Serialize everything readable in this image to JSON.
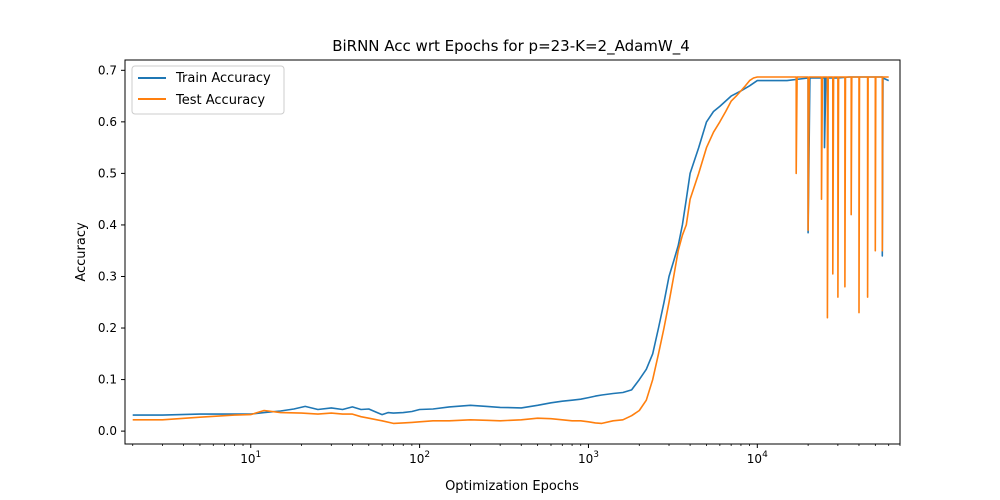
{
  "chart_data": {
    "type": "line",
    "title": "BiRNN Acc wrt Epochs for p=23-K=2_AdamW_4",
    "xlabel": "Optimization Epochs",
    "ylabel": "Accuracy",
    "xscale": "log",
    "xlim": [
      1.8,
      70000
    ],
    "ylim": [
      -0.025,
      0.72
    ],
    "yticks": [
      0.0,
      0.1,
      0.2,
      0.3,
      0.4,
      0.5,
      0.6,
      0.7
    ],
    "ytick_labels": [
      "0.0",
      "0.1",
      "0.2",
      "0.3",
      "0.4",
      "0.5",
      "0.6",
      "0.7"
    ],
    "xticks": [
      10,
      100,
      1000,
      10000
    ],
    "xtick_bases": [
      "10",
      "10",
      "10",
      "10"
    ],
    "xtick_exponents": [
      "1",
      "2",
      "3",
      "4"
    ],
    "grid": false,
    "legend_position": "top-left",
    "series": [
      {
        "name": "Train Accuracy",
        "color": "#1f77b4",
        "x": [
          2,
          3,
          5,
          8,
          10,
          12,
          15,
          18,
          21,
          25,
          30,
          35,
          40,
          45,
          50,
          55,
          60,
          65,
          70,
          80,
          90,
          100,
          120,
          150,
          200,
          250,
          300,
          400,
          500,
          600,
          700,
          800,
          900,
          1000,
          1100,
          1200,
          1400,
          1600,
          1800,
          2000,
          2200,
          2400,
          2600,
          2800,
          3000,
          3200,
          3400,
          3600,
          3800,
          4000,
          4500,
          5000,
          5500,
          6000,
          7000,
          8000,
          9000,
          10000,
          12000,
          15000,
          20000,
          20000,
          20500,
          25000,
          25000,
          25500,
          30000,
          35000,
          40000,
          45000,
          50000,
          55000,
          55000,
          55500,
          60000
        ],
        "y": [
          0.031,
          0.031,
          0.033,
          0.033,
          0.033,
          0.036,
          0.039,
          0.043,
          0.048,
          0.042,
          0.045,
          0.042,
          0.047,
          0.042,
          0.043,
          0.037,
          0.032,
          0.036,
          0.035,
          0.036,
          0.038,
          0.042,
          0.043,
          0.047,
          0.05,
          0.048,
          0.046,
          0.045,
          0.05,
          0.055,
          0.058,
          0.06,
          0.062,
          0.065,
          0.068,
          0.07,
          0.073,
          0.075,
          0.08,
          0.1,
          0.12,
          0.15,
          0.2,
          0.25,
          0.3,
          0.33,
          0.36,
          0.4,
          0.45,
          0.5,
          0.55,
          0.6,
          0.62,
          0.63,
          0.65,
          0.66,
          0.67,
          0.68,
          0.68,
          0.68,
          0.685,
          0.385,
          0.685,
          0.685,
          0.55,
          0.685,
          0.685,
          0.687,
          0.687,
          0.687,
          0.687,
          0.687,
          0.34,
          0.685,
          0.68
        ]
      },
      {
        "name": "Test Accuracy",
        "color": "#ff7f0e",
        "x": [
          2,
          3,
          5,
          8,
          10,
          12,
          15,
          20,
          25,
          30,
          35,
          40,
          45,
          50,
          60,
          70,
          80,
          90,
          100,
          120,
          150,
          200,
          250,
          300,
          400,
          500,
          600,
          700,
          800,
          900,
          1000,
          1100,
          1200,
          1400,
          1600,
          1800,
          2000,
          2200,
          2400,
          2600,
          2800,
          3000,
          3200,
          3400,
          3600,
          3800,
          4000,
          4500,
          5000,
          5500,
          6000,
          6500,
          7000,
          7500,
          8000,
          8500,
          9000,
          9500,
          10000,
          12000,
          15000,
          17000,
          17000,
          17200,
          20000,
          20000,
          20300,
          24000,
          24000,
          24300,
          26000,
          26000,
          26300,
          28000,
          28000,
          28300,
          30000,
          30000,
          30300,
          33000,
          33000,
          33300,
          36000,
          36000,
          36300,
          40000,
          40000,
          40300,
          45000,
          45000,
          45300,
          50000,
          50000,
          50300,
          55000,
          55000,
          55300,
          60000
        ],
        "y": [
          0.022,
          0.022,
          0.027,
          0.031,
          0.032,
          0.04,
          0.036,
          0.035,
          0.033,
          0.035,
          0.033,
          0.033,
          0.028,
          0.025,
          0.02,
          0.015,
          0.016,
          0.017,
          0.018,
          0.02,
          0.02,
          0.022,
          0.021,
          0.02,
          0.022,
          0.025,
          0.024,
          0.022,
          0.02,
          0.02,
          0.018,
          0.016,
          0.015,
          0.02,
          0.022,
          0.03,
          0.04,
          0.06,
          0.1,
          0.15,
          0.2,
          0.25,
          0.3,
          0.35,
          0.38,
          0.4,
          0.45,
          0.5,
          0.55,
          0.58,
          0.6,
          0.62,
          0.64,
          0.65,
          0.66,
          0.67,
          0.68,
          0.685,
          0.687,
          0.687,
          0.687,
          0.687,
          0.5,
          0.687,
          0.687,
          0.39,
          0.687,
          0.687,
          0.45,
          0.687,
          0.687,
          0.22,
          0.687,
          0.687,
          0.305,
          0.687,
          0.687,
          0.26,
          0.687,
          0.687,
          0.28,
          0.687,
          0.687,
          0.42,
          0.687,
          0.687,
          0.23,
          0.687,
          0.687,
          0.26,
          0.687,
          0.687,
          0.35,
          0.687,
          0.687,
          0.35,
          0.687,
          0.687
        ]
      }
    ]
  }
}
